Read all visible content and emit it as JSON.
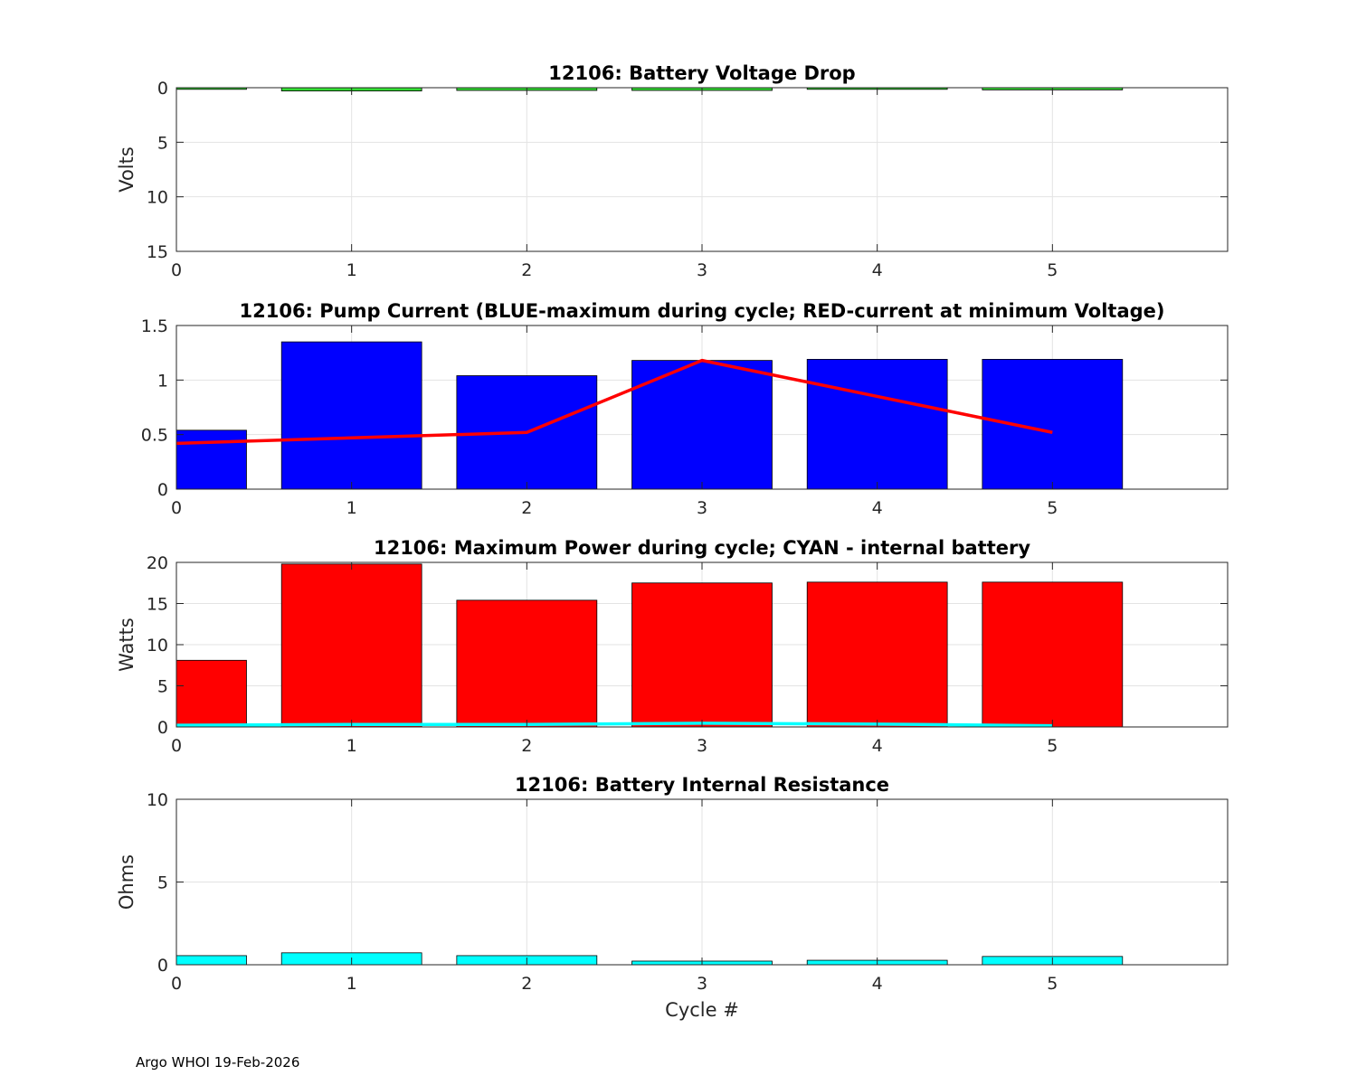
{
  "footer": "Argo WHOI 19-Feb-2026",
  "colors": {
    "green": "#33dd33",
    "blue": "#0000ff",
    "red": "#ff0000",
    "cyan": "#00ffff",
    "grid": "#e3e3e3",
    "axis": "#262626"
  },
  "chart_data": [
    {
      "type": "bar",
      "title": "12106: Battery Voltage Drop",
      "xlabel": "",
      "ylabel": "Volts",
      "xlim": [
        0,
        6
      ],
      "ylim": [
        0,
        15
      ],
      "y_reversed": true,
      "xticks": [
        "0",
        "1",
        "2",
        "3",
        "4",
        "5"
      ],
      "yticks": [
        "0",
        "5",
        "10",
        "15"
      ],
      "grid": true,
      "bar_color": "#33dd33",
      "series": [
        {
          "name": "Voltage Drop",
          "x": [
            0,
            1,
            2,
            3,
            4,
            5
          ],
          "values": [
            0.15,
            0.3,
            0.25,
            0.25,
            0.15,
            0.2
          ]
        }
      ]
    },
    {
      "type": "bar",
      "title": "12106: Pump Current (BLUE-maximum during cycle; RED-current at minimum Voltage)",
      "xlabel": "",
      "ylabel": "",
      "xlim": [
        0,
        6
      ],
      "ylim": [
        0,
        1.5
      ],
      "xticks": [
        "0",
        "1",
        "2",
        "3",
        "4",
        "5"
      ],
      "yticks": [
        "0",
        "0.5",
        "1",
        "1.5"
      ],
      "grid": true,
      "bar_color": "#0000ff",
      "series": [
        {
          "name": "maximum during cycle",
          "x": [
            0,
            1,
            2,
            3,
            4,
            5
          ],
          "values": [
            0.54,
            1.35,
            1.04,
            1.18,
            1.19,
            1.19
          ]
        }
      ],
      "line_series": [
        {
          "name": "current at minimum Voltage",
          "color": "#ff0000",
          "x": [
            0,
            1,
            2,
            3,
            4,
            5
          ],
          "values": [
            0.42,
            0.47,
            0.52,
            1.18,
            0.85,
            0.52
          ]
        }
      ]
    },
    {
      "type": "bar",
      "title": "12106: Maximum Power during cycle; CYAN - internal battery",
      "xlabel": "",
      "ylabel": "Watts",
      "xlim": [
        0,
        6
      ],
      "ylim": [
        0,
        20
      ],
      "xticks": [
        "0",
        "1",
        "2",
        "3",
        "4",
        "5"
      ],
      "yticks": [
        "0",
        "5",
        "10",
        "15",
        "20"
      ],
      "grid": true,
      "bar_color": "#ff0000",
      "series": [
        {
          "name": "Maximum Power",
          "x": [
            0,
            1,
            2,
            3,
            4,
            5
          ],
          "values": [
            8.1,
            19.8,
            15.4,
            17.5,
            17.6,
            17.6
          ]
        }
      ],
      "line_series": [
        {
          "name": "internal battery",
          "color": "#00ffff",
          "x": [
            0,
            1,
            2,
            3,
            4,
            5
          ],
          "values": [
            0.2,
            0.3,
            0.3,
            0.45,
            0.35,
            0.15
          ]
        }
      ]
    },
    {
      "type": "bar",
      "title": "12106: Battery Internal Resistance",
      "xlabel": "Cycle #",
      "ylabel": "Ohms",
      "xlim": [
        0,
        6
      ],
      "ylim": [
        0,
        10
      ],
      "xticks": [
        "0",
        "1",
        "2",
        "3",
        "4",
        "5"
      ],
      "yticks": [
        "0",
        "5",
        "10"
      ],
      "grid": true,
      "bar_color": "#00ffff",
      "series": [
        {
          "name": "Internal Resistance",
          "x": [
            0,
            1,
            2,
            3,
            4,
            5
          ],
          "values": [
            0.55,
            0.72,
            0.55,
            0.22,
            0.27,
            0.5
          ]
        }
      ]
    }
  ]
}
